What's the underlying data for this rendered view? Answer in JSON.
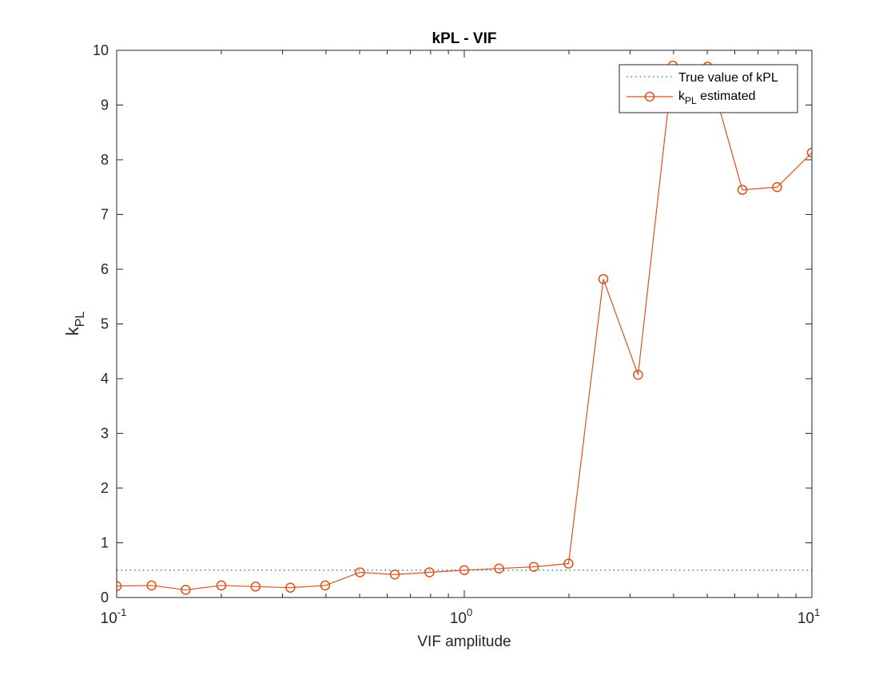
{
  "chart_data": {
    "type": "line",
    "title": "kPL - VIF",
    "xlabel": "VIF amplitude",
    "ylabel": {
      "base": "k",
      "sub": "PL"
    },
    "xscale": "log",
    "xlim": [
      0.1,
      10
    ],
    "ylim": [
      0,
      10
    ],
    "xticks": [
      {
        "value": 0.1,
        "base": "10",
        "exp": "-1"
      },
      {
        "value": 1,
        "base": "10",
        "exp": "0"
      },
      {
        "value": 10,
        "base": "10",
        "exp": "1"
      }
    ],
    "yticks": [
      0,
      1,
      2,
      3,
      4,
      5,
      6,
      7,
      8,
      9,
      10
    ],
    "grid": false,
    "legend_position": "top-right",
    "series": [
      {
        "name": "True value of kPL",
        "style": "dotted",
        "color": "#0072BD",
        "x": [
          0.1,
          10
        ],
        "y": [
          0.5,
          0.5
        ]
      },
      {
        "name": "k_PL estimated",
        "legend": {
          "base": "k",
          "sub": "PL",
          "rest": " estimated"
        },
        "style": "line-circle",
        "color": "#D95319",
        "x": [
          0.1,
          0.126,
          0.158,
          0.2,
          0.251,
          0.316,
          0.398,
          0.501,
          0.631,
          0.794,
          1.0,
          1.259,
          1.585,
          1.995,
          2.512,
          3.162,
          3.981,
          5.012,
          6.31,
          7.943,
          10.0
        ],
        "y": [
          0.21,
          0.22,
          0.14,
          0.22,
          0.2,
          0.18,
          0.22,
          0.46,
          0.42,
          0.46,
          0.5,
          0.53,
          0.56,
          0.62,
          5.82,
          4.07,
          9.72,
          9.7,
          7.45,
          7.5,
          8.13
        ]
      }
    ]
  }
}
